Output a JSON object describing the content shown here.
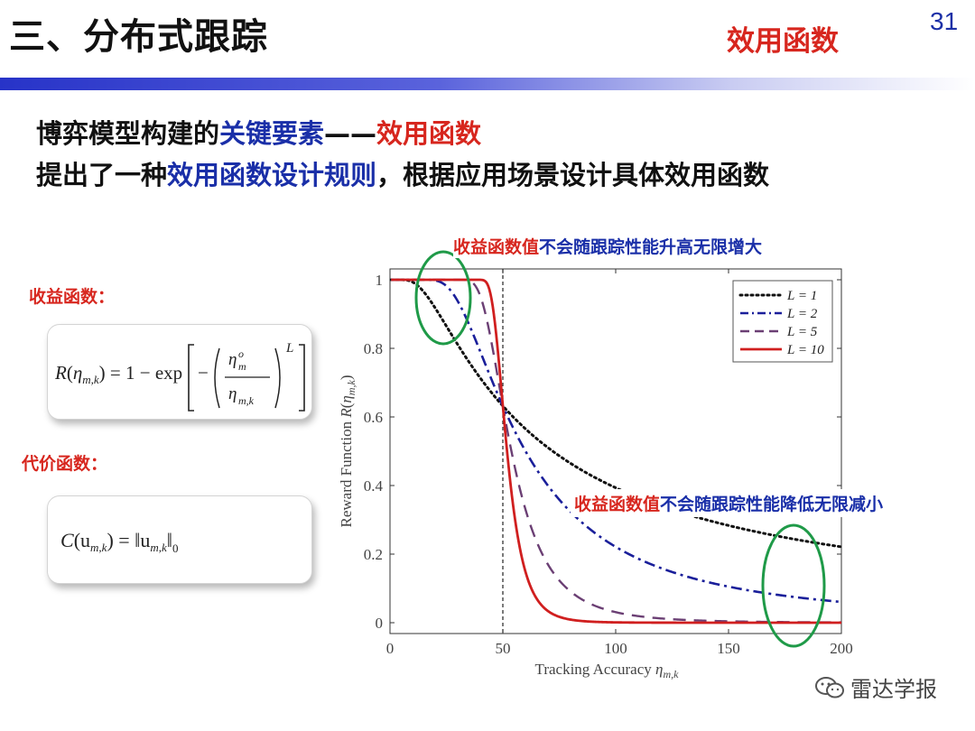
{
  "slide": {
    "title": "三、分布式跟踪",
    "subtitle": "效用函数",
    "page_number": "31"
  },
  "headline": {
    "line1_part1": "博弈模型构建的",
    "line1_part2": "关键要素",
    "line1_part3": "——",
    "line1_part4": "效用函数",
    "line2_part1": "提出了一种",
    "line2_part2": "效用函数设计规则",
    "line2_part3": "，根据应用场景设计具体效用函数"
  },
  "left_panel": {
    "reward_label": "收益函数：",
    "cost_label": "代价函数：",
    "reward_formula": "R(η_{m,k}) = 1 − exp[ −( η_m^o / η_{m,k} )^L ]",
    "cost_formula": "C(u_{m,k}) = ‖u_{m,k}‖_0"
  },
  "annotations": {
    "top_red": "收益函数值",
    "top_blue": "不会随跟踪性能升高无限增大",
    "bottom_red": "收益函数值",
    "bottom_blue": "不会随跟踪性能降低无限减小"
  },
  "chart_data": {
    "type": "line",
    "xlabel": "Tracking Accuracy η_{m,k}",
    "ylabel": "Reward Function R(η_{m,k})",
    "xlim": [
      0,
      200
    ],
    "ylim": [
      0,
      1
    ],
    "x_ticks": [
      0,
      50,
      100,
      150,
      200
    ],
    "y_ticks": [
      0,
      0.2,
      0.4,
      0.6,
      0.8,
      1
    ],
    "eta_o": 50,
    "vertical_reference_x": 50,
    "legend_position": "top-right",
    "series": [
      {
        "name": "L = 1",
        "L": 1,
        "style": "dotted",
        "color": "#111111"
      },
      {
        "name": "L = 2",
        "L": 2,
        "style": "dashdot",
        "color": "#1a1f9a"
      },
      {
        "name": "L = 5",
        "L": 5,
        "style": "dashed",
        "color": "#6b3f74"
      },
      {
        "name": "L = 10",
        "L": 10,
        "style": "solid",
        "color": "#d01f1f"
      }
    ],
    "highlights": [
      "top-left plateau near R = 1",
      "bottom-right tail near R = 0"
    ]
  },
  "colors": {
    "accent_red": "#d7261e",
    "accent_blue": "#1a2fa8",
    "highlight_green": "#1f9a48"
  },
  "watermark": {
    "text": "雷达学报",
    "icon": "wechat-icon"
  }
}
